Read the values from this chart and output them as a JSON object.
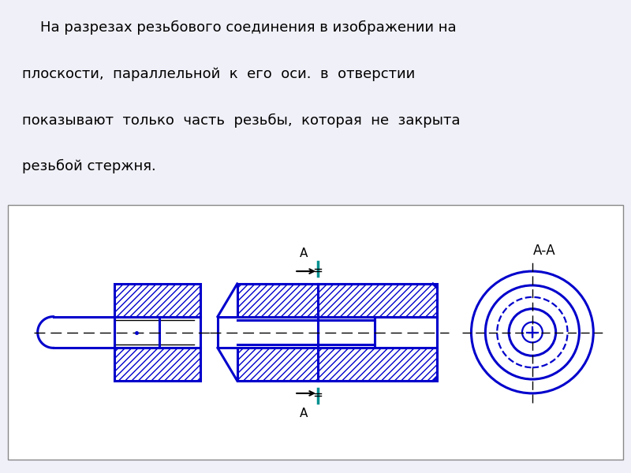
{
  "title_lines": [
    "    На разрезах резьбового соединения в изображении на",
    "плоскости,  параллельной  к  его  оси.  в  отверстии",
    "показывают  только  часть  резьбы,  которая  не  закрыта",
    "резьбой стержня."
  ],
  "blue": "#0000cc",
  "teal": "#009090",
  "black": "#000000",
  "page_bg": "#f0f0f8",
  "white": "#ffffff",
  "label_A": "А",
  "label_AA": "А-А"
}
